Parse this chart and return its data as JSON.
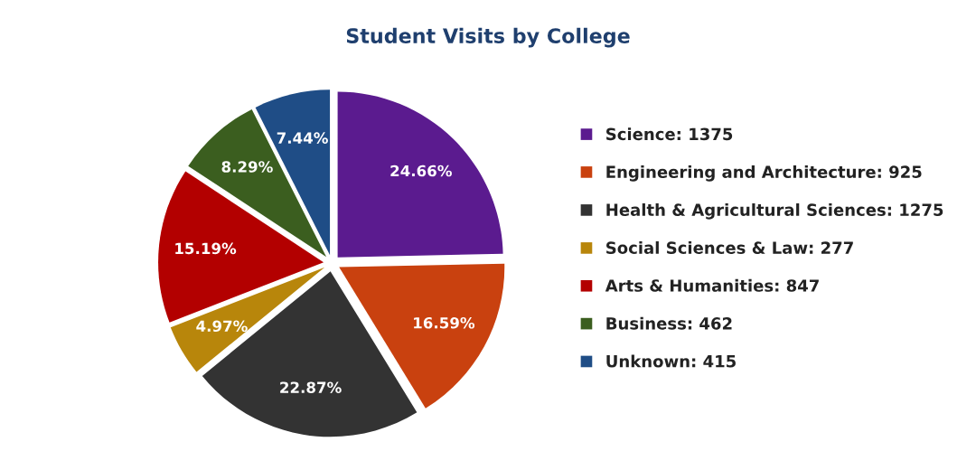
{
  "chart_data": {
    "type": "pie",
    "title": "Student Visits by College",
    "categories": [
      "Science: 1375",
      "Engineering and Architecture: 925",
      "Health & Agricultural Sciences: 1275",
      "Social Sciences & Law: 277",
      "Arts & Humanities: 847",
      "Business: 462",
      "Unknown: 415"
    ],
    "values": [
      24.66,
      16.59,
      22.87,
      4.97,
      15.19,
      8.29,
      7.44
    ],
    "value_labels": [
      "24.66%",
      "16.59%",
      "22.87%",
      "4.97%",
      "15.19%",
      "8.29%",
      "7.44%"
    ],
    "colors": [
      "#5b1b8f",
      "#c9410f",
      "#333333",
      "#b8860b",
      "#b30000",
      "#3b5e1f",
      "#1f4d86"
    ],
    "legend": "right"
  }
}
